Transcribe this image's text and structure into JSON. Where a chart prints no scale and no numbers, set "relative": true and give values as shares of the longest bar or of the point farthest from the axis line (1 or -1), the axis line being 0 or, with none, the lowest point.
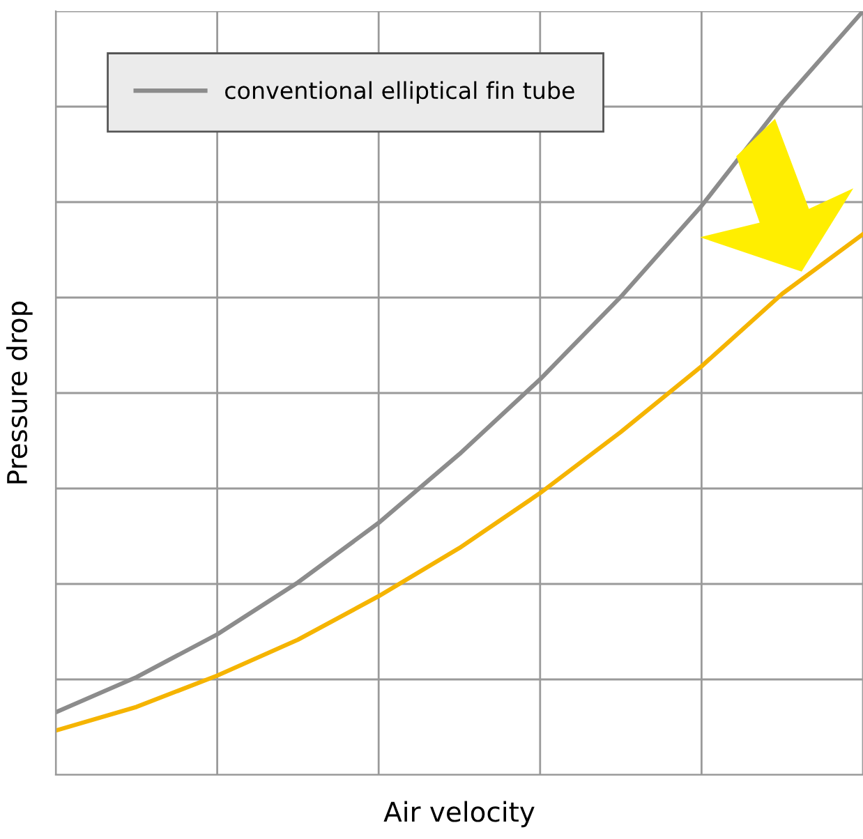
{
  "chart_data": {
    "type": "line",
    "relative": true,
    "xlabel": "Air velocity",
    "ylabel": "Pressure drop",
    "categories": [
      null,
      null,
      null,
      null,
      null,
      null,
      null,
      null,
      null,
      null,
      null
    ],
    "series": [
      {
        "name": "conventional elliptical fin tube",
        "color": "#8c8c8c",
        "values": [
          0.082,
          0.128,
          0.184,
          0.252,
          0.33,
          0.42,
          0.518,
          0.626,
          0.745,
          0.88,
          1.0
        ]
      },
      {
        "color": "#f5b400",
        "values": [
          0.058,
          0.089,
          0.13,
          0.177,
          0.234,
          0.297,
          0.369,
          0.449,
          0.535,
          0.63,
          0.708
        ]
      }
    ],
    "grid": true,
    "legend": "top left",
    "marker": "none",
    "line_style": "solid"
  }
}
